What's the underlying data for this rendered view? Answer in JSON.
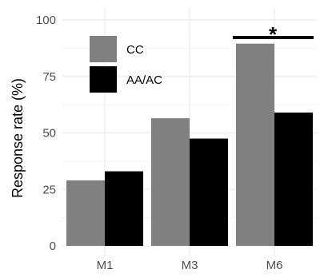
{
  "chart_data": {
    "type": "bar",
    "categories": [
      "M1",
      "M3",
      "M6"
    ],
    "series": [
      {
        "name": "CC",
        "values": [
          29,
          56.5,
          89.5
        ],
        "color": "#808080"
      },
      {
        "name": "AA/AC",
        "values": [
          33,
          47.5,
          59
        ],
        "color": "#000000"
      }
    ],
    "xlabel": "",
    "ylabel": "Response rate (%)",
    "ylim": [
      0,
      100
    ],
    "yticks": [
      "0",
      "25",
      "50",
      "75",
      "100"
    ],
    "grid": true,
    "legend_position": "top-left",
    "annotations": [
      {
        "text": "*",
        "category": "M6",
        "type": "significance-bracket"
      }
    ]
  }
}
